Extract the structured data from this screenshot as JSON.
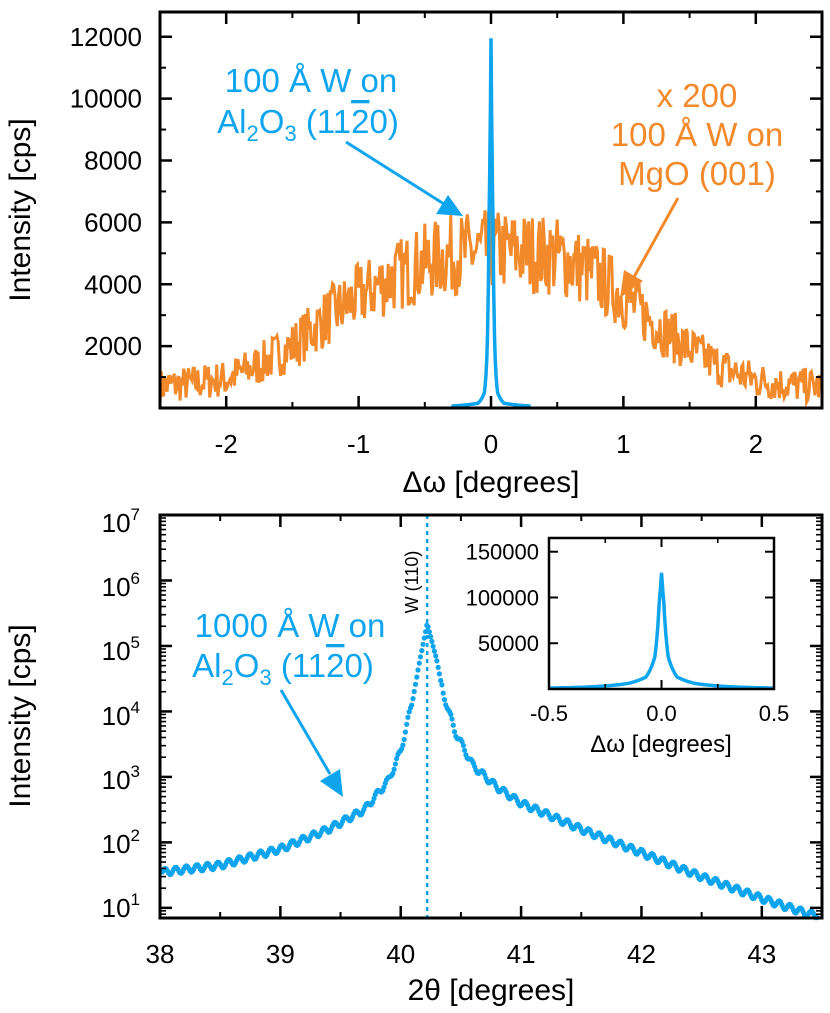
{
  "colors": {
    "blue": "#0ea5ee",
    "orange": "#f28a2c",
    "axis": "#000000"
  },
  "chart_data": [
    {
      "type": "line",
      "panel": "top",
      "xlabel": "Δω [degrees]",
      "ylabel": "Intensity [cps]",
      "xlim": [
        -2.5,
        2.5
      ],
      "ylim": [
        0,
        12800
      ],
      "xticks": [
        -2,
        -1,
        0,
        1,
        2
      ],
      "xtick_labels": [
        "-2",
        "-1",
        "0",
        "1",
        "2"
      ],
      "yticks": [
        2000,
        4000,
        6000,
        8000,
        10000,
        12000
      ],
      "ytick_labels": [
        "2000",
        "4000",
        "6000",
        "8000",
        "10000",
        "12000"
      ],
      "grid": false,
      "series": [
        {
          "color": "orange",
          "note": "x 200",
          "x": [
            -2.5,
            -2.25,
            -2.0,
            -1.75,
            -1.5,
            -1.25,
            -1.0,
            -0.75,
            -0.5,
            -0.25,
            0.0,
            0.25,
            0.5,
            0.75,
            1.0,
            1.25,
            1.5,
            1.75,
            2.0,
            2.25,
            2.5
          ],
          "values": [
            700,
            800,
            950,
            1400,
            2000,
            2900,
            3600,
            4200,
            4700,
            5000,
            5100,
            5050,
            4900,
            4400,
            3600,
            2700,
            1900,
            1300,
            900,
            750,
            700
          ]
        },
        {
          "color": "blue",
          "x": [
            -0.3,
            -0.1,
            -0.05,
            -0.03,
            -0.015,
            0.0,
            0.015,
            0.03,
            0.05,
            0.1,
            0.3
          ],
          "values": [
            60,
            150,
            500,
            1800,
            6000,
            11950,
            6000,
            1800,
            500,
            150,
            60
          ]
        }
      ],
      "annotations": [
        {
          "lines": [
            "100 Å W on",
            "Al",
            "2",
            "O",
            "3",
            " (11",
            "2",
            "0)"
          ],
          "color": "blue"
        },
        {
          "lines": [
            "x 200",
            "100 Å W on",
            "MgO (001)"
          ],
          "color": "orange"
        }
      ]
    },
    {
      "type": "scatter",
      "panel": "bottom",
      "xlabel": "2θ [degrees]",
      "ylabel": "Intensity [cps]",
      "xscale": "linear",
      "yscale": "log",
      "xlim": [
        38,
        43.5
      ],
      "ylim": [
        7,
        10000000
      ],
      "xticks": [
        38,
        39,
        40,
        41,
        42,
        43
      ],
      "xtick_labels": [
        "38",
        "39",
        "40",
        "41",
        "42",
        "43"
      ],
      "ytick_labels": [
        "10",
        "1",
        "10",
        "2",
        "10",
        "3",
        "10",
        "4",
        "10",
        "5",
        "10",
        "6",
        "10",
        "7"
      ],
      "ytick_values": [
        10,
        100,
        1000,
        10000,
        100000,
        1000000,
        10000000
      ],
      "grid": false,
      "peak_line": {
        "x": 40.22,
        "label": "W (110)"
      },
      "series": [
        {
          "color": "blue",
          "x": [
            38.0,
            38.5,
            39.0,
            39.4,
            39.7,
            39.9,
            40.0,
            40.1,
            40.15,
            40.22,
            40.3,
            40.35,
            40.45,
            40.6,
            40.8,
            41.0,
            41.5,
            42.0,
            42.5,
            43.0,
            43.4
          ],
          "values": [
            35,
            45,
            80,
            160,
            320,
            900,
            2500,
            15000,
            50000,
            220000,
            60000,
            20000,
            5000,
            1500,
            700,
            400,
            160,
            70,
            30,
            14,
            8
          ]
        }
      ],
      "annotation": {
        "lines": [
          "1000 Å W on",
          "Al",
          "2",
          "O",
          "3",
          " (11",
          "2",
          "0)"
        ],
        "color": "blue"
      },
      "inset": {
        "type": "line",
        "xlabel": "Δω [degrees]",
        "xlim": [
          -0.5,
          0.5
        ],
        "ylim": [
          0,
          165000
        ],
        "xticks": [
          -0.5,
          0.0,
          0.5
        ],
        "xtick_labels": [
          "-0.5",
          "0.0",
          "0.5"
        ],
        "yticks": [
          50000,
          100000,
          150000
        ],
        "ytick_labels": [
          "50000",
          "100000",
          "150000"
        ],
        "series": [
          {
            "color": "blue",
            "x": [
              -0.5,
              -0.3,
              -0.15,
              -0.07,
              -0.03,
              -0.01,
              0.0,
              0.01,
              0.03,
              0.07,
              0.15,
              0.3,
              0.5
            ],
            "values": [
              1000,
              2500,
              6000,
              13000,
              35000,
              95000,
              127000,
              95000,
              35000,
              13000,
              6000,
              2500,
              1000
            ]
          }
        ]
      }
    }
  ]
}
